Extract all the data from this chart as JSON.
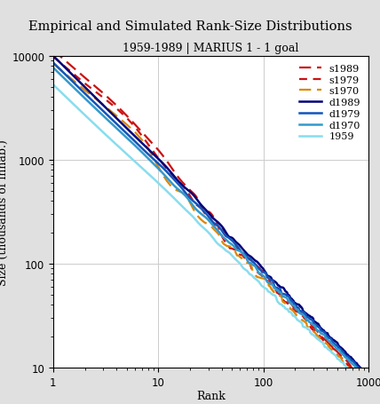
{
  "title": "Empirical and Simulated Rank-Size Distributions",
  "subtitle": "1959-1989 | MARIUS 1 - 1 goal",
  "xlabel": "Rank",
  "ylabel": "Size (thousands of inhab.)",
  "xlim": [
    1,
    1000
  ],
  "ylim": [
    10,
    10000
  ],
  "background_color": "#e0e0e0",
  "plot_bg": "#ffffff",
  "series": [
    {
      "label": "s1989",
      "color": "#cc1111",
      "linestyle": "dashed",
      "linewidth": 1.6,
      "dashes": [
        6,
        3
      ]
    },
    {
      "label": "s1979",
      "color": "#cc1111",
      "linestyle": "dashed",
      "linewidth": 1.6,
      "dashes": [
        4,
        3
      ]
    },
    {
      "label": "s1970",
      "color": "#dd8800",
      "linestyle": "dashed",
      "linewidth": 1.6,
      "dashes": [
        6,
        3
      ]
    },
    {
      "label": "d1989",
      "color": "#00007a",
      "linestyle": "solid",
      "linewidth": 1.8
    },
    {
      "label": "d1979",
      "color": "#1155bb",
      "linestyle": "solid",
      "linewidth": 1.8
    },
    {
      "label": "d1970",
      "color": "#3399cc",
      "linestyle": "solid",
      "linewidth": 1.8
    },
    {
      "label": "1959",
      "color": "#88ddee",
      "linestyle": "solid",
      "linewidth": 1.8
    }
  ],
  "title_fontsize": 10.5,
  "subtitle_fontsize": 9,
  "legend_fontsize": 8,
  "axis_fontsize": 9
}
